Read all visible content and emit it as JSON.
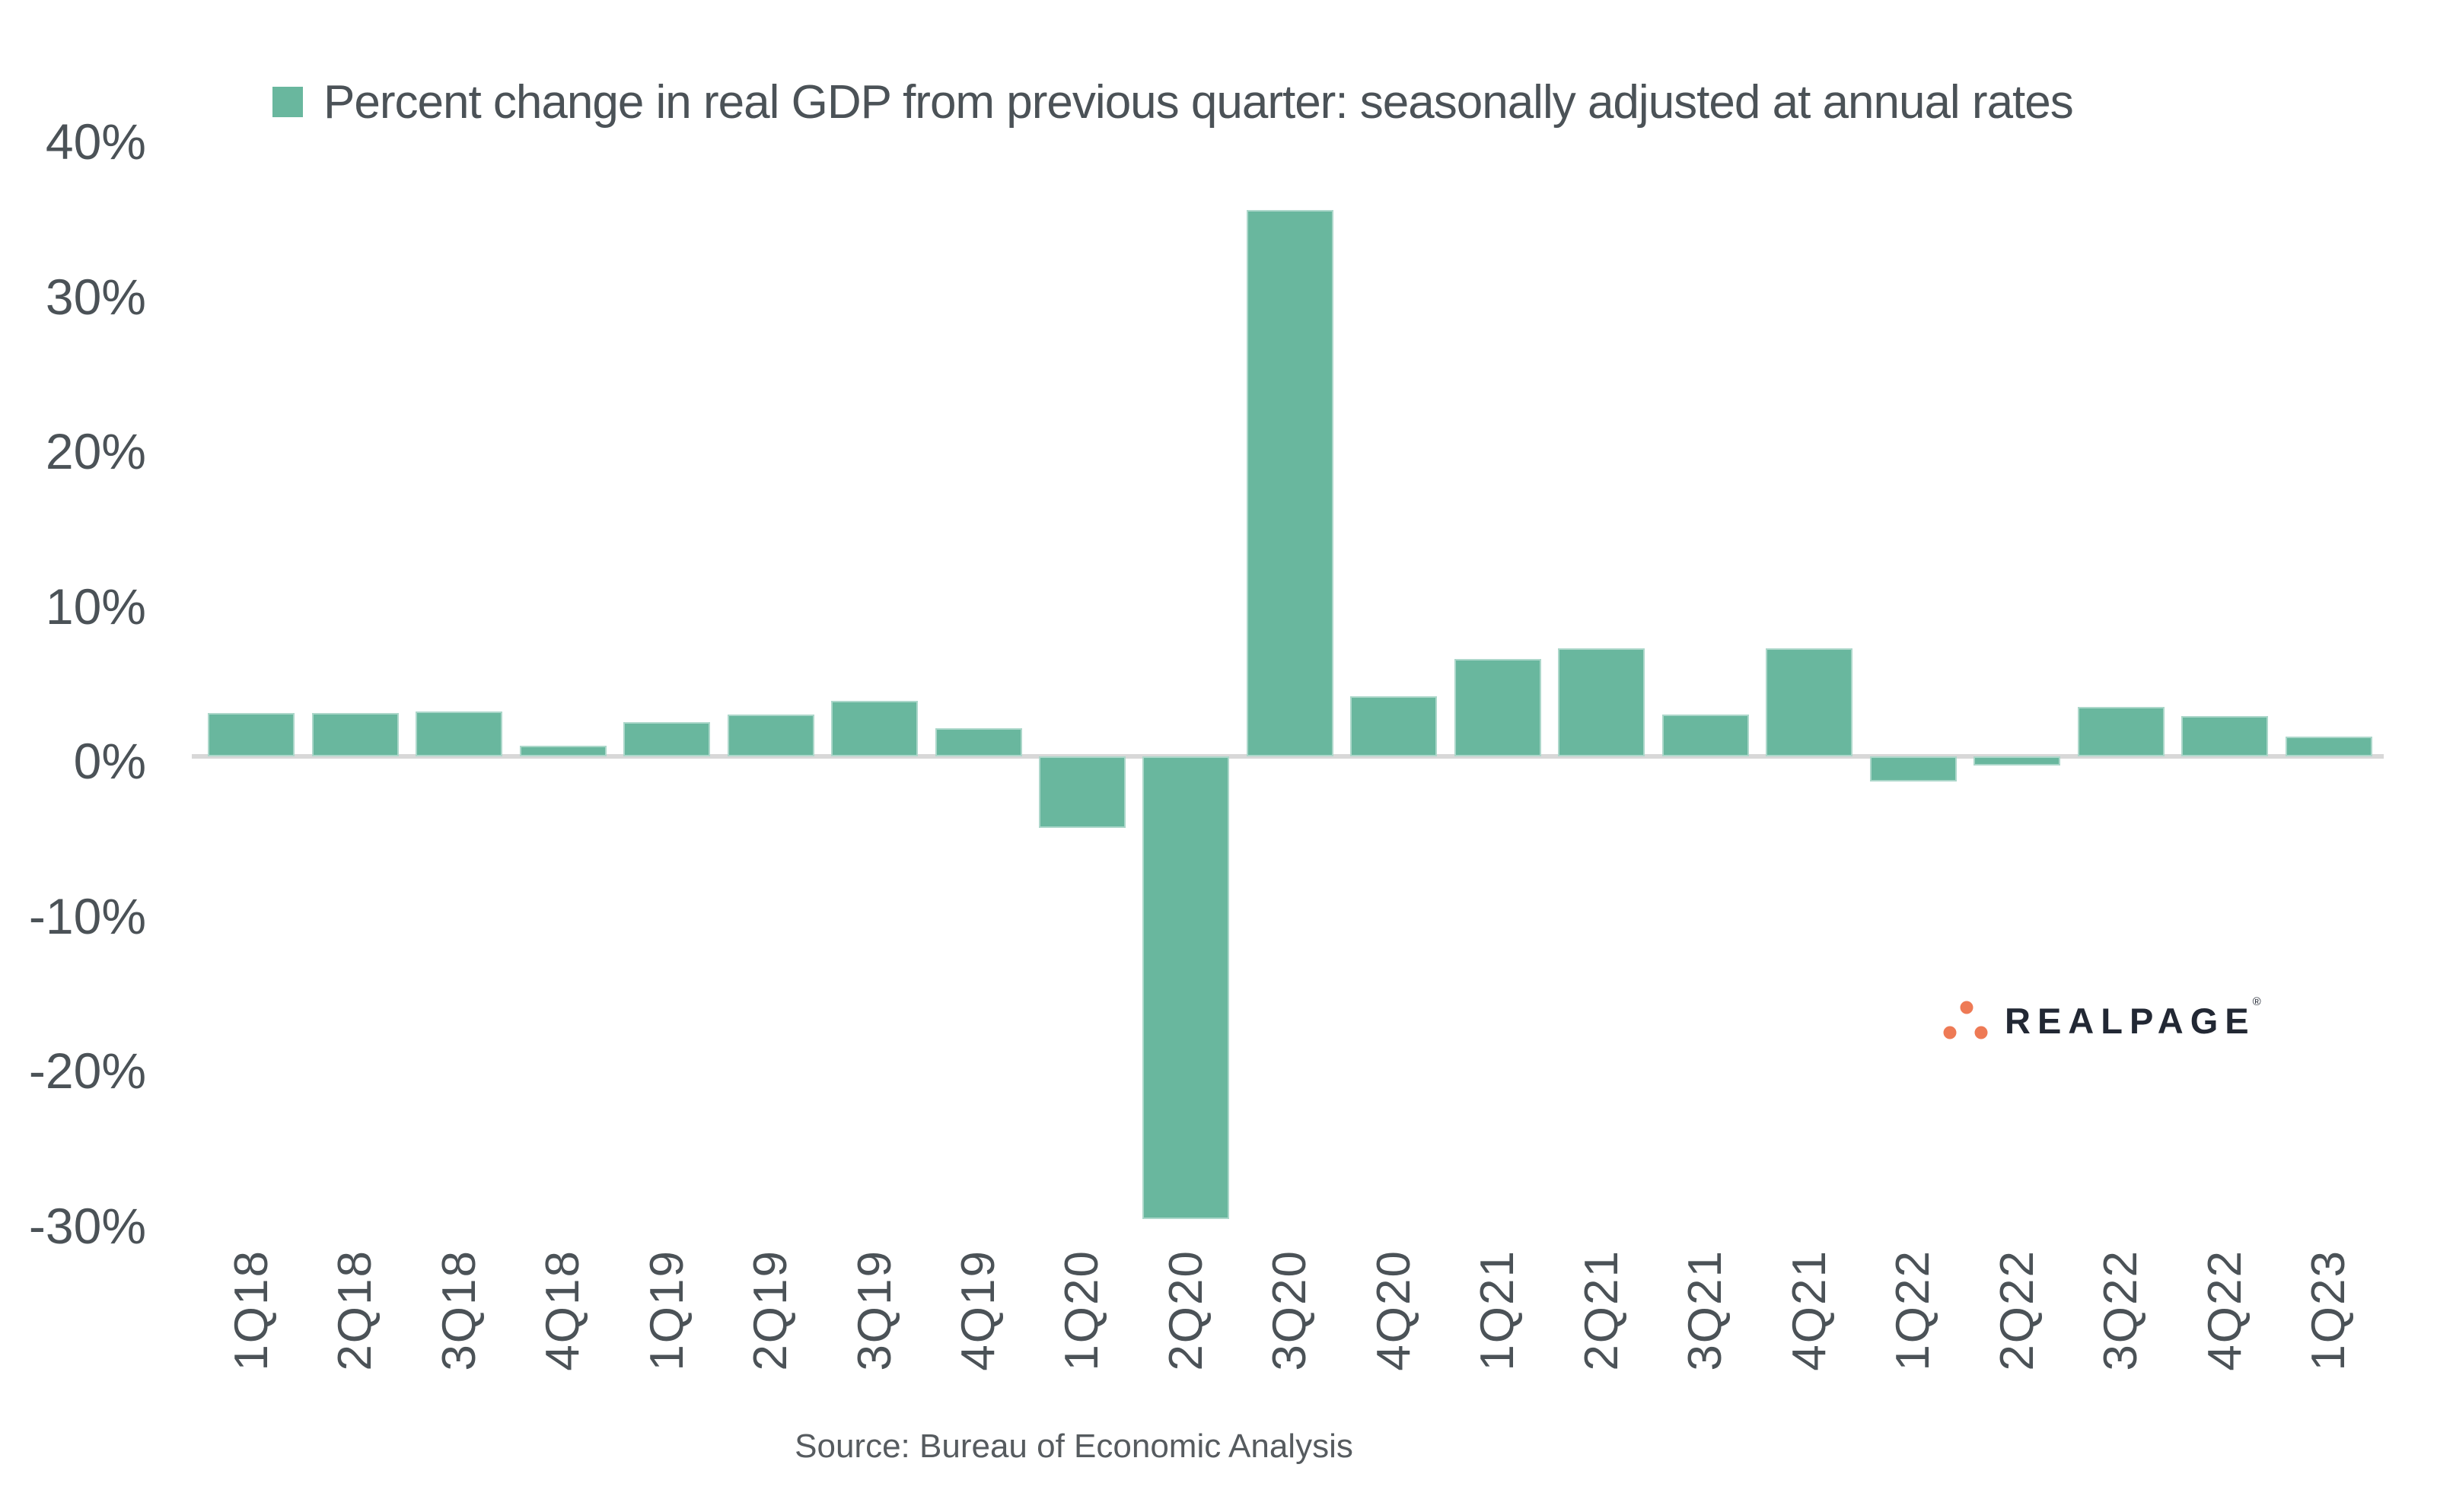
{
  "legend": {
    "label": "Percent change in real GDP from previous quarter: seasonally adjusted at annual rates"
  },
  "chart_data": {
    "type": "bar",
    "title": "Percent change in real GDP from previous quarter: seasonally adjusted at annual rates",
    "categories": [
      "1Q18",
      "2Q18",
      "3Q18",
      "4Q18",
      "1Q19",
      "2Q19",
      "3Q19",
      "4Q19",
      "1Q20",
      "2Q20",
      "3Q20",
      "4Q20",
      "1Q21",
      "2Q21",
      "3Q21",
      "4Q21",
      "1Q22",
      "2Q22",
      "3Q22",
      "4Q22",
      "1Q23"
    ],
    "values": [
      2.8,
      2.8,
      2.9,
      0.7,
      2.2,
      2.7,
      3.6,
      1.8,
      -4.6,
      -29.9,
      35.3,
      3.9,
      6.3,
      7.0,
      2.7,
      7.0,
      -1.6,
      -0.6,
      3.2,
      2.6,
      1.3
    ],
    "xlabel": "",
    "ylabel": "",
    "ylim": [
      -30,
      40
    ],
    "ytick_values": [
      40,
      30,
      20,
      10,
      0,
      -10,
      -20,
      -30
    ],
    "ytick_labels": [
      "40%",
      "30%",
      "20%",
      "10%",
      "0%",
      "-10%",
      "-20%",
      "-30%"
    ],
    "grid": false,
    "legend_position": "top",
    "bar_color": "#69b79e"
  },
  "source": {
    "text": "Source: Bureau of Economic Analysis"
  },
  "logo": {
    "brand": "REALPAGE",
    "registered": "®"
  },
  "colors": {
    "bar": "#69b79e",
    "axis-line": "#d8d8d8",
    "text": "#4b5257",
    "source-text": "#565b5f",
    "logo-text": "#222834",
    "logo-dot": "#ee7a55",
    "background": "#ffffff"
  }
}
